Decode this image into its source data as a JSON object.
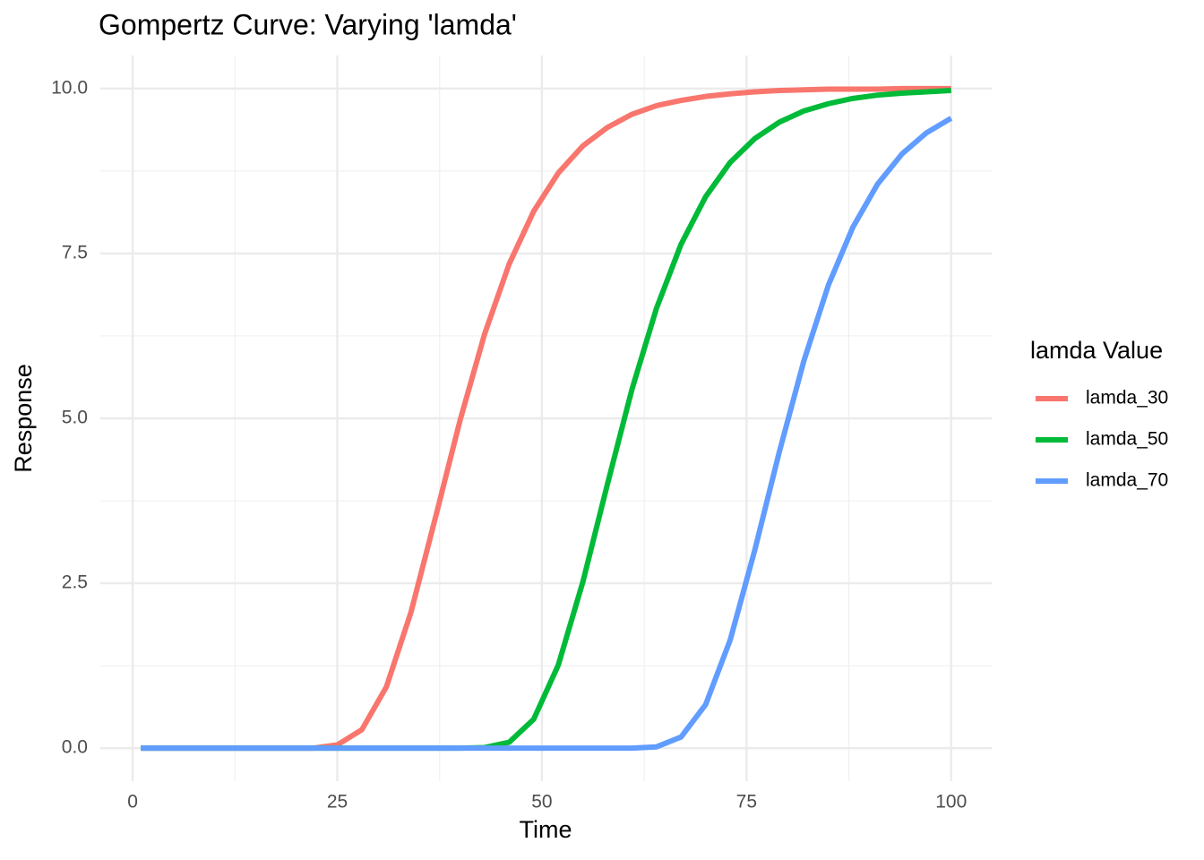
{
  "chart_data": {
    "type": "line",
    "title": "Gompertz Curve: Varying 'lamda'",
    "x_label": "Time",
    "y_label": "Response",
    "legend_title": "lamda Value",
    "x": [
      1,
      4,
      7,
      10,
      13,
      16,
      19,
      22,
      25,
      28,
      31,
      34,
      37,
      40,
      43,
      46,
      49,
      52,
      55,
      58,
      61,
      64,
      67,
      70,
      73,
      76,
      79,
      82,
      85,
      88,
      91,
      94,
      97,
      100
    ],
    "series": [
      {
        "name": "lamda_30",
        "color": "#F8766D",
        "values": [
          0,
          0,
          0,
          0,
          0,
          0,
          0,
          0,
          0.05,
          0.28,
          0.93,
          2.06,
          3.5,
          4.97,
          6.28,
          7.34,
          8.14,
          8.72,
          9.13,
          9.41,
          9.61,
          9.74,
          9.82,
          9.88,
          9.92,
          9.95,
          9.97,
          9.98,
          9.99,
          9.99,
          9.99,
          10,
          10,
          10
        ]
      },
      {
        "name": "lamda_50",
        "color": "#00BA38",
        "values": [
          0,
          0,
          0,
          0,
          0,
          0,
          0,
          0,
          0,
          0,
          0,
          0,
          0,
          0,
          0.01,
          0.09,
          0.44,
          1.26,
          2.52,
          4.0,
          5.44,
          6.67,
          7.64,
          8.36,
          8.88,
          9.24,
          9.49,
          9.66,
          9.77,
          9.85,
          9.9,
          9.93,
          9.95,
          9.97
        ]
      },
      {
        "name": "lamda_70",
        "color": "#619CFF",
        "values": [
          0,
          0,
          0,
          0,
          0,
          0,
          0,
          0,
          0,
          0,
          0,
          0,
          0,
          0,
          0,
          0,
          0,
          0,
          0,
          0,
          0,
          0.02,
          0.17,
          0.66,
          1.64,
          3.0,
          4.49,
          5.87,
          7.02,
          7.9,
          8.55,
          9.01,
          9.33,
          9.55
        ]
      }
    ],
    "xlim": [
      -3.95,
      104.95
    ],
    "ylim": [
      -0.5,
      10.5
    ],
    "xticks": [
      0,
      25,
      50,
      75,
      100
    ],
    "yticks": [
      {
        "value": 0,
        "label": "0.0"
      },
      {
        "value": 2.5,
        "label": "2.5"
      },
      {
        "value": 5,
        "label": "5.0"
      },
      {
        "value": 7.5,
        "label": "7.5"
      },
      {
        "value": 10,
        "label": "10.0"
      }
    ],
    "grid": true,
    "legend": "right"
  }
}
